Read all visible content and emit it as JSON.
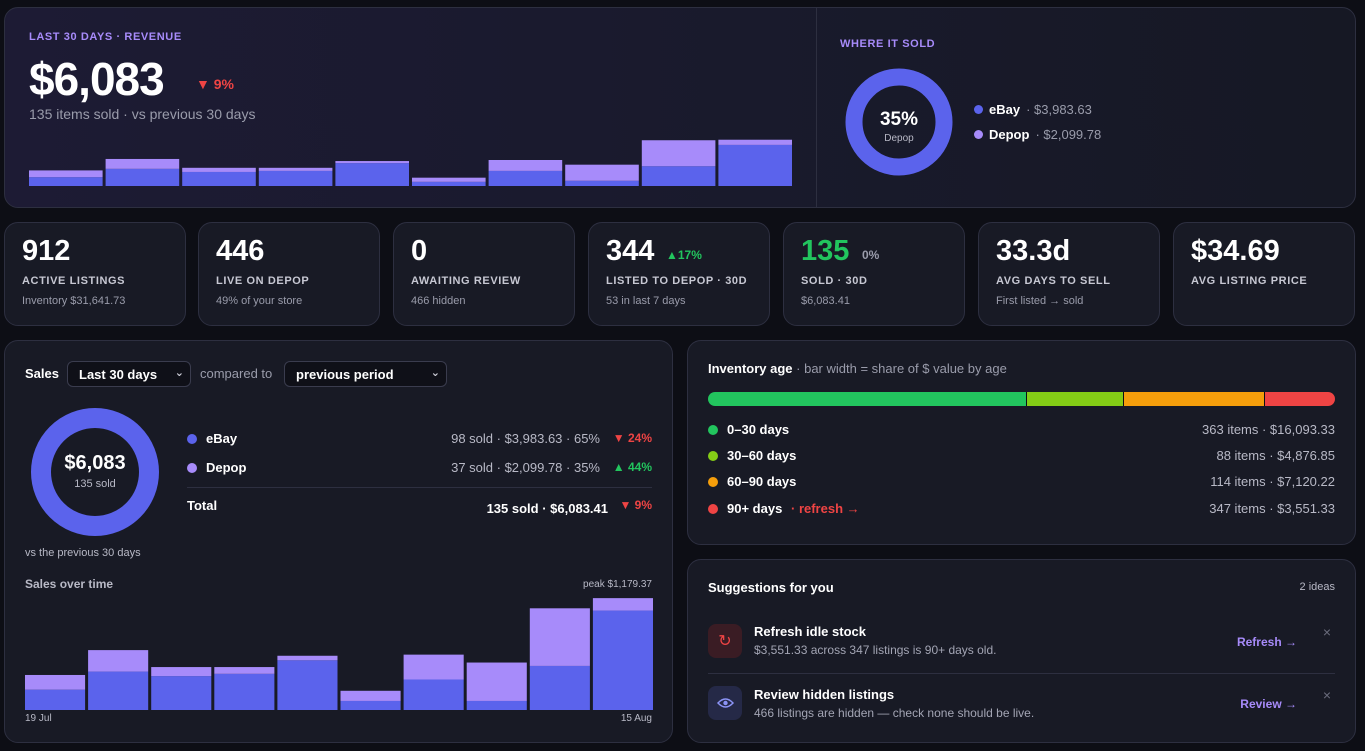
{
  "hero": {
    "eyebrow": "LAST 30 DAYS · REVENUE",
    "amount": "$6,083",
    "change": "▼ 9%",
    "subtitle": "135 items sold · vs previous 30 days",
    "bars": [
      {
        "ebay": 0.17,
        "depop": 0.13
      },
      {
        "ebay": 0.33,
        "depop": 0.19
      },
      {
        "ebay": 0.27,
        "depop": 0.08
      },
      {
        "ebay": 0.29,
        "depop": 0.06
      },
      {
        "ebay": 0.44,
        "depop": 0.04
      },
      {
        "ebay": 0.08,
        "depop": 0.08
      },
      {
        "ebay": 0.29,
        "depop": 0.21
      },
      {
        "ebay": 0.1,
        "depop": 0.31
      },
      {
        "ebay": 0.38,
        "depop": 0.5
      },
      {
        "ebay": 0.79,
        "depop": 0.1
      }
    ],
    "where": {
      "eyebrow": "WHERE IT SOLD",
      "center_pct": "35%",
      "center_label": "Depop",
      "depop_fraction": 0.345,
      "legend": [
        {
          "name": "eBay",
          "value": "· $3,983.63",
          "color": "#5b63ec"
        },
        {
          "name": "Depop",
          "value": "· $2,099.78",
          "color": "#a78bfa"
        }
      ]
    }
  },
  "stats": [
    {
      "value": "912",
      "label": "ACTIVE LISTINGS",
      "sub": "Inventory $31,641.73"
    },
    {
      "value": "446",
      "label": "LIVE ON DEPOP",
      "sub": "49% of your store"
    },
    {
      "value": "0",
      "label": "AWAITING REVIEW",
      "sub": "466 hidden"
    },
    {
      "value": "344",
      "change": "▲17%",
      "label": "LISTED TO DEPOP · 30D",
      "sub": "53 in last 7 days"
    },
    {
      "value": "135",
      "change": "0%",
      "label": "SOLD · 30D",
      "sub": "$6,083.41"
    },
    {
      "value": "33.3d",
      "label": "AVG DAYS TO SELL",
      "sub": "First listed → sold"
    },
    {
      "value": "$34.69",
      "label": "AVG LISTING PRICE",
      "sub": ""
    }
  ],
  "sales": {
    "title": "Sales",
    "period": "Last 30 days",
    "compared_to": "compared to",
    "comparison": "previous period",
    "donut_amount": "$6,083",
    "donut_sub": "135 sold",
    "vs_note": "vs the previous 30 days",
    "rows": [
      {
        "name": "eBay",
        "detail": "98 sold · $3,983.63 · 65%",
        "change": "▼ 24%",
        "color": "#5b63ec"
      },
      {
        "name": "Depop",
        "detail": "37 sold · $2,099.78 · 35%",
        "change": "▲ 44%",
        "color": "#a78bfa"
      }
    ],
    "total_label": "Total",
    "total_detail": "135 sold · $6,083.41",
    "total_change": "▼ 9%",
    "over_time_title": "Sales over time",
    "peak": "peak $1,179.37",
    "x_start": "19 Jul",
    "x_end": "15 Aug",
    "bars": [
      {
        "ebay": 0.18,
        "depop": 0.13
      },
      {
        "ebay": 0.34,
        "depop": 0.19
      },
      {
        "ebay": 0.3,
        "depop": 0.08
      },
      {
        "ebay": 0.32,
        "depop": 0.06
      },
      {
        "ebay": 0.44,
        "depop": 0.04
      },
      {
        "ebay": 0.08,
        "depop": 0.09
      },
      {
        "ebay": 0.27,
        "depop": 0.22
      },
      {
        "ebay": 0.08,
        "depop": 0.34
      },
      {
        "ebay": 0.39,
        "depop": 0.51
      },
      {
        "ebay": 0.88,
        "depop": 0.11
      }
    ]
  },
  "inventory": {
    "title": "Inventory age",
    "subtitle": "· bar width = share of $ value by age",
    "rows": [
      {
        "name": "0–30 days",
        "value": "363 items · $16,093.33",
        "color": "#22c55e",
        "share": 0.509
      },
      {
        "name": "30–60 days",
        "value": "88 items · $4,876.85",
        "color": "#84cc16",
        "share": 0.154
      },
      {
        "name": "60–90 days",
        "value": "114 items · $7,120.22",
        "color": "#f59e0b",
        "share": 0.225
      },
      {
        "name": "90+ days",
        "link": "· refresh →",
        "value": "347 items · $3,551.33",
        "color": "#ef4444",
        "share": 0.112
      }
    ]
  },
  "suggestions": {
    "title": "Suggestions for you",
    "count": "2 ideas",
    "items": [
      {
        "icon": "refresh-icon",
        "title": "Refresh idle stock",
        "desc": "$3,551.33 across 347 listings is 90+ days old.",
        "action": "Refresh →"
      },
      {
        "icon": "eye-icon",
        "title": "Review hidden listings",
        "desc": "466 listings are hidden — check none should be live.",
        "action": "Review →"
      }
    ]
  }
}
